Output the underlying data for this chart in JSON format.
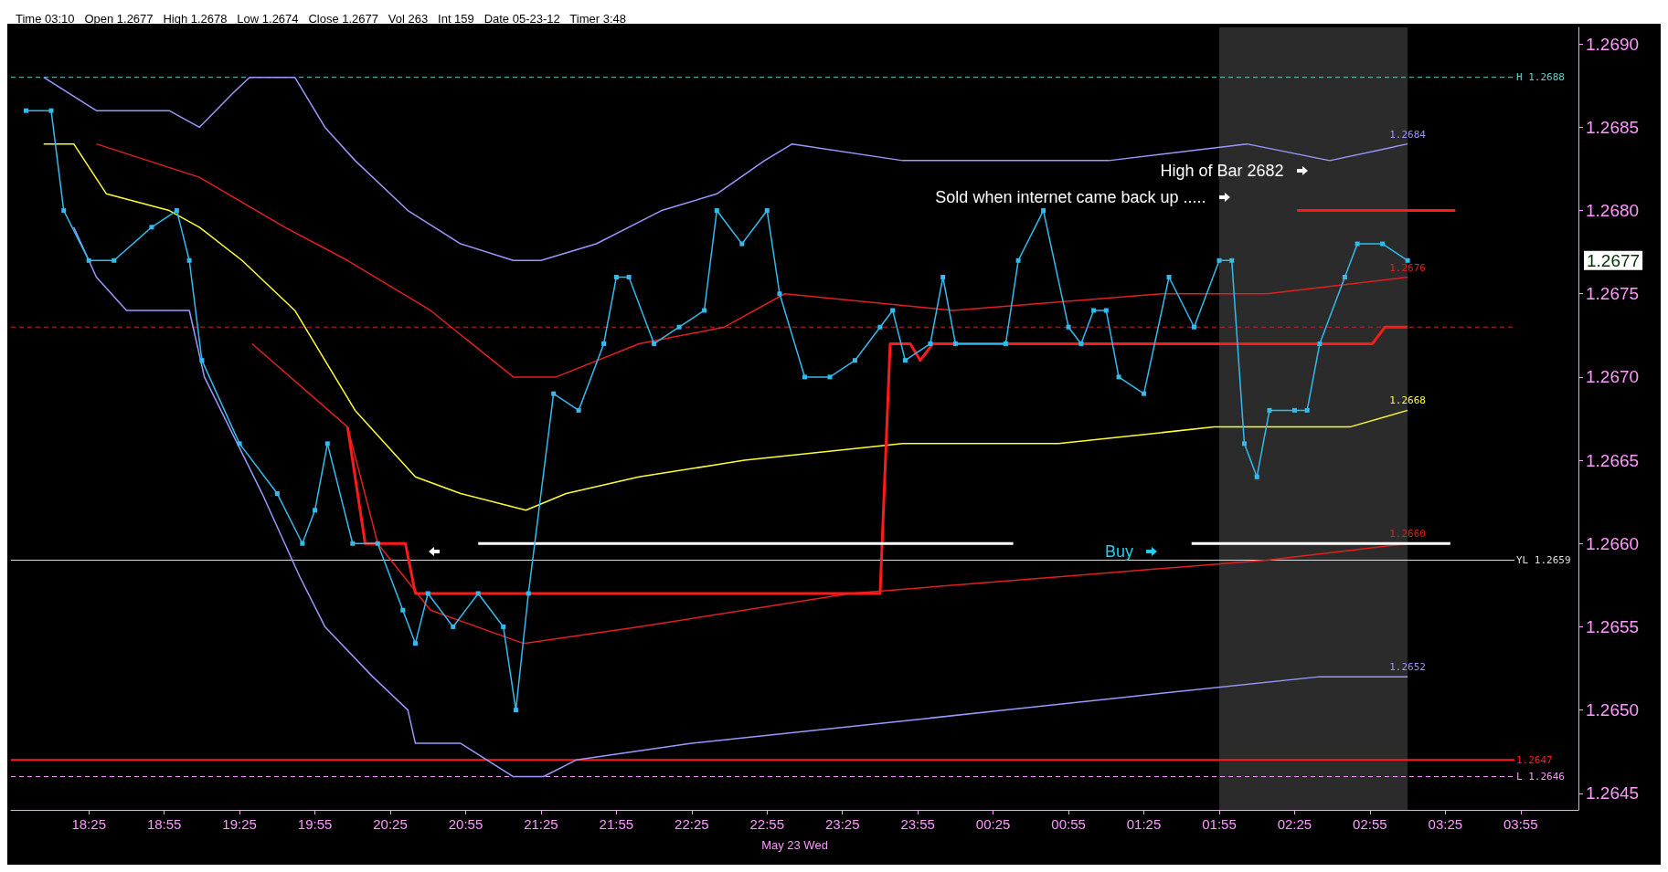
{
  "chart_data": {
    "type": "line",
    "title": "Time 03:10   Open 1.2677   High 1.2678   Low 1.2674   Close 1.2677   Vol 263   Int 159   Date 05-23-12   Timer 3:48",
    "xlabel": "May 23 Wed",
    "xlim": [
      "--05-22T17:54",
      "--05-23T04:18"
    ],
    "ylim": [
      1.2644,
      1.2691
    ],
    "xticks": [
      {
        "value": "--05-22T18:25",
        "label": "18:25"
      },
      {
        "value": "--05-22T18:55",
        "label": "18:55"
      },
      {
        "value": "--05-22T19:25",
        "label": "19:25"
      },
      {
        "value": "--05-22T19:55",
        "label": "19:55"
      },
      {
        "value": "--05-22T20:25",
        "label": "20:25"
      },
      {
        "value": "--05-22T20:55",
        "label": "20:55"
      },
      {
        "value": "--05-22T21:25",
        "label": "21:25"
      },
      {
        "value": "--05-22T21:55",
        "label": "21:55"
      },
      {
        "value": "--05-22T22:25",
        "label": "22:25"
      },
      {
        "value": "--05-22T22:55",
        "label": "22:55"
      },
      {
        "value": "--05-22T23:25",
        "label": "23:25"
      },
      {
        "value": "--05-22T23:55",
        "label": "23:55"
      },
      {
        "value": "--05-23T00:25",
        "label": "00:25"
      },
      {
        "value": "--05-23T00:55",
        "label": "00:55"
      },
      {
        "value": "--05-23T01:25",
        "label": "01:25"
      },
      {
        "value": "--05-23T01:55",
        "label": "01:55"
      },
      {
        "value": "--05-23T02:25",
        "label": "02:25"
      },
      {
        "value": "--05-23T02:55",
        "label": "02:55"
      },
      {
        "value": "--05-23T03:25",
        "label": "03:25"
      },
      {
        "value": "--05-23T03:55",
        "label": "03:55"
      }
    ],
    "yticks": [
      {
        "value": 1.2645,
        "label": "1.2645"
      },
      {
        "value": 1.265,
        "label": "1.2650"
      },
      {
        "value": 1.2655,
        "label": "1.2655"
      },
      {
        "value": 1.266,
        "label": "1.2660"
      },
      {
        "value": 1.2665,
        "label": "1.2665"
      },
      {
        "value": 1.267,
        "label": "1.2670"
      },
      {
        "value": 1.2675,
        "label": "1.2675"
      },
      {
        "value": 1.268,
        "label": "1.2680"
      },
      {
        "value": 1.2685,
        "label": "1.2685"
      },
      {
        "value": 1.269,
        "label": "1.2690"
      }
    ],
    "grid": false,
    "series": [
      {
        "color": "#9999ff",
        "x": [
          "--05-22T18:07",
          "--05-22T18:28",
          "--05-22T18:44",
          "--05-22T18:57",
          "--05-22T19:09",
          "--05-22T19:22",
          "--05-22T19:29",
          "--05-22T19:47",
          "--05-22T19:59",
          "--05-22T20:11",
          "--05-22T20:32",
          "--05-22T20:53",
          "--05-22T21:14",
          "--05-22T21:25",
          "--05-22T21:47",
          "--05-22T22:13",
          "--05-22T22:35",
          "--05-22T22:54",
          "--05-22T23:05",
          "--05-22T23:49",
          "--05-23T00:30",
          "--05-23T01:11",
          "--05-23T02:06",
          "--05-23T02:39",
          "--05-23T03:10"
        ],
        "values": [
          1.2688,
          1.2686,
          1.2686,
          1.2686,
          1.2685,
          1.2687,
          1.2688,
          1.2688,
          1.2685,
          1.2683,
          1.268,
          1.2678,
          1.2677,
          1.2677,
          1.2678,
          1.268,
          1.2681,
          1.2683,
          1.2684,
          1.2683,
          1.2683,
          1.2683,
          1.2684,
          1.2683,
          1.2684
        ],
        "value_labels": [
          null,
          null,
          null,
          null,
          null,
          null,
          null,
          null,
          null,
          null,
          null,
          null,
          null,
          null,
          null,
          null,
          null,
          null,
          null,
          null,
          null,
          null,
          null,
          null,
          "1.2684"
        ]
      },
      {
        "color": "#9999ff",
        "x": [
          "--05-22T18:19",
          "--05-22T18:28",
          "--05-22T18:40",
          "--05-22T19:05",
          "--05-22T19:11",
          "--05-22T19:34",
          "--05-22T19:49",
          "--05-22T19:59",
          "--05-22T20:18",
          "--05-22T20:32",
          "--05-22T20:35",
          "--05-22T20:53",
          "--05-22T21:14",
          "--05-22T21:26",
          "--05-22T21:39",
          "--05-22T22:25",
          "--05-22T23:28",
          "--05-23T00:30",
          "--05-23T01:32",
          "--05-23T02:35",
          "--05-23T03:10"
        ],
        "values": [
          1.2679,
          1.2676,
          1.2674,
          1.2674,
          1.267,
          1.2663,
          1.2658,
          1.2655,
          1.2652,
          1.265,
          1.2648,
          1.2648,
          1.2646,
          1.2646,
          1.2647,
          1.2648,
          1.2649,
          1.265,
          1.2651,
          1.2652,
          1.2652
        ],
        "value_labels": [
          null,
          null,
          null,
          null,
          null,
          null,
          null,
          null,
          null,
          null,
          null,
          null,
          null,
          null,
          null,
          null,
          null,
          null,
          null,
          null,
          "1.2652"
        ]
      },
      {
        "color": "#ffff33",
        "x": [
          "--05-22T18:07",
          "--05-22T18:19",
          "--05-22T18:32",
          "--05-22T18:57",
          "--05-22T19:09",
          "--05-22T19:26",
          "--05-22T19:47",
          "--05-22T19:59",
          "--05-22T20:11",
          "--05-22T20:35",
          "--05-22T20:53",
          "--05-22T21:19",
          "--05-22T21:35",
          "--05-22T22:04",
          "--05-22T22:46",
          "--05-22T23:49",
          "--05-23T00:51",
          "--05-23T01:53",
          "--05-23T02:47",
          "--05-23T03:10"
        ],
        "values": [
          1.2684,
          1.2684,
          1.2681,
          1.268,
          1.2679,
          1.2677,
          1.2674,
          1.2671,
          1.2668,
          1.2664,
          1.2663,
          1.2662,
          1.2663,
          1.2664,
          1.2665,
          1.2666,
          1.2666,
          1.2667,
          1.2667,
          1.2668
        ],
        "value_labels": [
          null,
          null,
          null,
          null,
          null,
          null,
          null,
          null,
          null,
          null,
          null,
          null,
          null,
          null,
          null,
          null,
          null,
          null,
          null,
          "1.2668"
        ]
      },
      {
        "color": "#e02020",
        "x": [
          "--05-22T18:28",
          "--05-22T19:09",
          "--05-22T19:43",
          "--05-22T20:08",
          "--05-22T20:41",
          "--05-22T21:14",
          "--05-22T21:31",
          "--05-22T22:04",
          "--05-22T22:38",
          "--05-22T23:02",
          "--05-23T00:09",
          "--05-23T01:32",
          "--05-23T02:14",
          "--05-23T03:10"
        ],
        "values": [
          1.2684,
          1.2682,
          1.2679,
          1.2677,
          1.2674,
          1.267,
          1.267,
          1.2672,
          1.2673,
          1.2675,
          1.2674,
          1.2675,
          1.2675,
          1.2676
        ],
        "value_labels": [
          null,
          null,
          null,
          null,
          null,
          null,
          null,
          null,
          null,
          null,
          null,
          null,
          null,
          "1.2676"
        ]
      },
      {
        "color": "#e02020",
        "x": [
          "--05-22T19:30",
          "--05-22T20:08",
          "--05-22T20:20",
          "--05-22T20:41",
          "--05-22T21:18",
          "--05-22T22:04",
          "--05-22T23:28",
          "--05-23T00:51",
          "--05-23T02:14",
          "--05-23T03:10"
        ],
        "values": [
          1.2672,
          1.2667,
          1.266,
          1.2656,
          1.2654,
          1.2655,
          1.2657,
          1.2658,
          1.2659,
          1.266
        ],
        "value_labels": [
          null,
          null,
          null,
          null,
          null,
          null,
          null,
          null,
          null,
          "1.2660"
        ]
      },
      {
        "color": "#ff1a1a",
        "x": [
          "--05-22T20:08",
          "--05-22T20:15",
          "--05-22T20:31",
          "--05-22T20:35",
          "--05-22T23:40",
          "--05-22T23:44",
          "--05-22T23:52",
          "--05-22T23:56",
          "--05-23T00:01",
          "--05-23T02:56",
          "--05-23T03:01",
          "--05-23T03:10"
        ],
        "values": [
          1.2667,
          1.266,
          1.266,
          1.2657,
          1.2657,
          1.2672,
          1.2672,
          1.2671,
          1.2672,
          1.2672,
          1.2673,
          1.2673
        ]
      },
      {
        "color": "#ffffff",
        "x": [
          "--05-22T21:00",
          "--05-23T00:33"
        ],
        "values": [
          1.266,
          1.266
        ]
      },
      {
        "color": "#ffffff",
        "x": [
          "--05-23T01:44",
          "--05-23T03:27"
        ],
        "values": [
          1.266,
          1.266
        ]
      },
      {
        "color": "#ff1a1a",
        "x": [
          "--05-23T02:26",
          "--05-23T03:29"
        ],
        "values": [
          1.268,
          1.268
        ]
      },
      {
        "color": "#33bbee",
        "marker": "square",
        "x": [
          "--05-22T18:00",
          "--05-22T18:10",
          "--05-22T18:15",
          "--05-22T18:25",
          "--05-22T18:35",
          "--05-22T18:50",
          "--05-22T19:00",
          "--05-22T19:05",
          "--05-22T19:10",
          "--05-22T19:25",
          "--05-22T19:40",
          "--05-22T19:50",
          "--05-22T19:55",
          "--05-22T20:00",
          "--05-22T20:10",
          "--05-22T20:20",
          "--05-22T20:30",
          "--05-22T20:35",
          "--05-22T20:40",
          "--05-22T20:50",
          "--05-22T21:00",
          "--05-22T21:10",
          "--05-22T21:15",
          "--05-22T21:20",
          "--05-22T21:30",
          "--05-22T21:40",
          "--05-22T21:50",
          "--05-22T21:55",
          "--05-22T22:00",
          "--05-22T22:10",
          "--05-22T22:20",
          "--05-22T22:30",
          "--05-22T22:35",
          "--05-22T22:45",
          "--05-22T22:55",
          "--05-22T23:00",
          "--05-22T23:10",
          "--05-22T23:20",
          "--05-22T23:30",
          "--05-22T23:40",
          "--05-22T23:45",
          "--05-22T23:50",
          "--05-23T00:00",
          "--05-23T00:05",
          "--05-23T00:10",
          "--05-23T00:30",
          "--05-23T00:35",
          "--05-23T00:45",
          "--05-23T00:55",
          "--05-23T01:00",
          "--05-23T01:05",
          "--05-23T01:10",
          "--05-23T01:15",
          "--05-23T01:25",
          "--05-23T01:35",
          "--05-23T01:45",
          "--05-23T01:55",
          "--05-23T02:00",
          "--05-23T02:05",
          "--05-23T02:10",
          "--05-23T02:15",
          "--05-23T02:25",
          "--05-23T02:30",
          "--05-23T02:35",
          "--05-23T02:45",
          "--05-23T02:50",
          "--05-23T03:00",
          "--05-23T03:10"
        ],
        "values": [
          1.2686,
          1.2686,
          1.268,
          1.2677,
          1.2677,
          1.2679,
          1.268,
          1.2677,
          1.2671,
          1.2666,
          1.2663,
          1.266,
          1.2662,
          1.2666,
          1.266,
          1.266,
          1.2656,
          1.2654,
          1.2657,
          1.2655,
          1.2657,
          1.2655,
          1.265,
          1.2657,
          1.2669,
          1.2668,
          1.2672,
          1.2676,
          1.2676,
          1.2672,
          1.2673,
          1.2674,
          1.268,
          1.2678,
          1.268,
          1.2675,
          1.267,
          1.267,
          1.2671,
          1.2673,
          1.2674,
          1.2671,
          1.2672,
          1.2676,
          1.2672,
          1.2672,
          1.2677,
          1.268,
          1.2673,
          1.2672,
          1.2674,
          1.2674,
          1.267,
          1.2669,
          1.2676,
          1.2673,
          1.2677,
          1.2677,
          1.2666,
          1.2664,
          1.2668,
          1.2668,
          1.2668,
          1.2672,
          1.2676,
          1.2678,
          1.2678,
          1.2677
        ]
      }
    ],
    "ref_lines": [
      {
        "axis": "y",
        "value": 1.2688,
        "label": "H 1.2688",
        "color": "#66cccc",
        "line_style": "dashed"
      },
      {
        "axis": "y",
        "value": 1.2673,
        "color": "#cc2222",
        "line_style": "dashed"
      },
      {
        "axis": "y",
        "value": 1.2659,
        "label": "YL 1.2659",
        "color": "#dddddd",
        "line_style": "solid"
      },
      {
        "axis": "y",
        "value": 1.2647,
        "label": "1.2647",
        "color": "#ff1a1a",
        "line_style": "solid"
      },
      {
        "axis": "y",
        "value": 1.2646,
        "label": "L 1.2646",
        "color": "#ff99ff",
        "line_style": "dashed"
      }
    ],
    "bands": [
      {
        "axis": "x",
        "from": "--05-23T01:55",
        "to": "--05-23T03:10",
        "color": "#2b2b2b"
      }
    ],
    "annotations": [
      "High of Bar 2682",
      "Sold when internet came back up .....",
      "Buy",
      "1.2677"
    ]
  }
}
